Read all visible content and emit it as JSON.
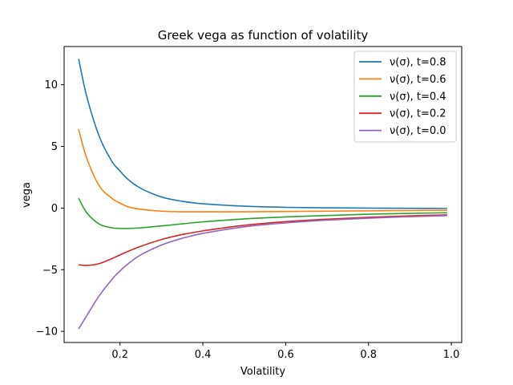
{
  "chart_data": {
    "type": "line",
    "title": "Greek vega as function of volatility",
    "xlabel": "Volatility",
    "ylabel": "vega",
    "xlim": [
      0.065,
      1.025
    ],
    "ylim": [
      -10.9,
      13.1
    ],
    "xticks": [
      0.2,
      0.4,
      0.6,
      0.8,
      1.0
    ],
    "xtick_labels": [
      "0.2",
      "0.4",
      "0.6",
      "0.8",
      "1.0"
    ],
    "yticks": [
      -10,
      -5,
      0,
      5,
      10
    ],
    "ytick_labels": [
      "−10",
      "−5",
      "0",
      "5",
      "10"
    ],
    "grid": false,
    "legend_position": "top-right",
    "x": [
      0.1,
      0.12,
      0.15,
      0.18,
      0.2,
      0.22,
      0.25,
      0.3,
      0.35,
      0.4,
      0.5,
      0.6,
      0.7,
      0.8,
      0.9,
      0.99
    ],
    "series": [
      {
        "name": "ν(σ), t=0.8",
        "color": "#1f77b4",
        "values": [
          12.1,
          9.0,
          5.8,
          3.8,
          3.0,
          2.3,
          1.6,
          0.9,
          0.55,
          0.35,
          0.15,
          0.06,
          0.02,
          0.0,
          -0.02,
          -0.03
        ]
      },
      {
        "name": "ν(σ), t=0.6",
        "color": "#ff7f0e",
        "values": [
          6.4,
          4.0,
          1.8,
          0.8,
          0.4,
          0.1,
          -0.1,
          -0.25,
          -0.3,
          -0.3,
          -0.3,
          -0.28,
          -0.25,
          -0.22,
          -0.2,
          -0.18
        ]
      },
      {
        "name": "ν(σ), t=0.4",
        "color": "#2ca02c",
        "values": [
          0.8,
          -0.4,
          -1.3,
          -1.6,
          -1.65,
          -1.65,
          -1.6,
          -1.45,
          -1.28,
          -1.12,
          -0.88,
          -0.72,
          -0.6,
          -0.5,
          -0.43,
          -0.38
        ]
      },
      {
        "name": "ν(σ), t=0.2",
        "color": "#d62728",
        "values": [
          -4.6,
          -4.65,
          -4.5,
          -4.1,
          -3.8,
          -3.5,
          -3.1,
          -2.55,
          -2.15,
          -1.85,
          -1.4,
          -1.1,
          -0.9,
          -0.75,
          -0.63,
          -0.55
        ]
      },
      {
        "name": "ν(σ), t=0.0",
        "color": "#9467bd",
        "values": [
          -9.8,
          -8.7,
          -7.1,
          -5.8,
          -5.1,
          -4.5,
          -3.8,
          -3.0,
          -2.45,
          -2.05,
          -1.52,
          -1.2,
          -0.98,
          -0.82,
          -0.7,
          -0.61
        ]
      }
    ]
  }
}
